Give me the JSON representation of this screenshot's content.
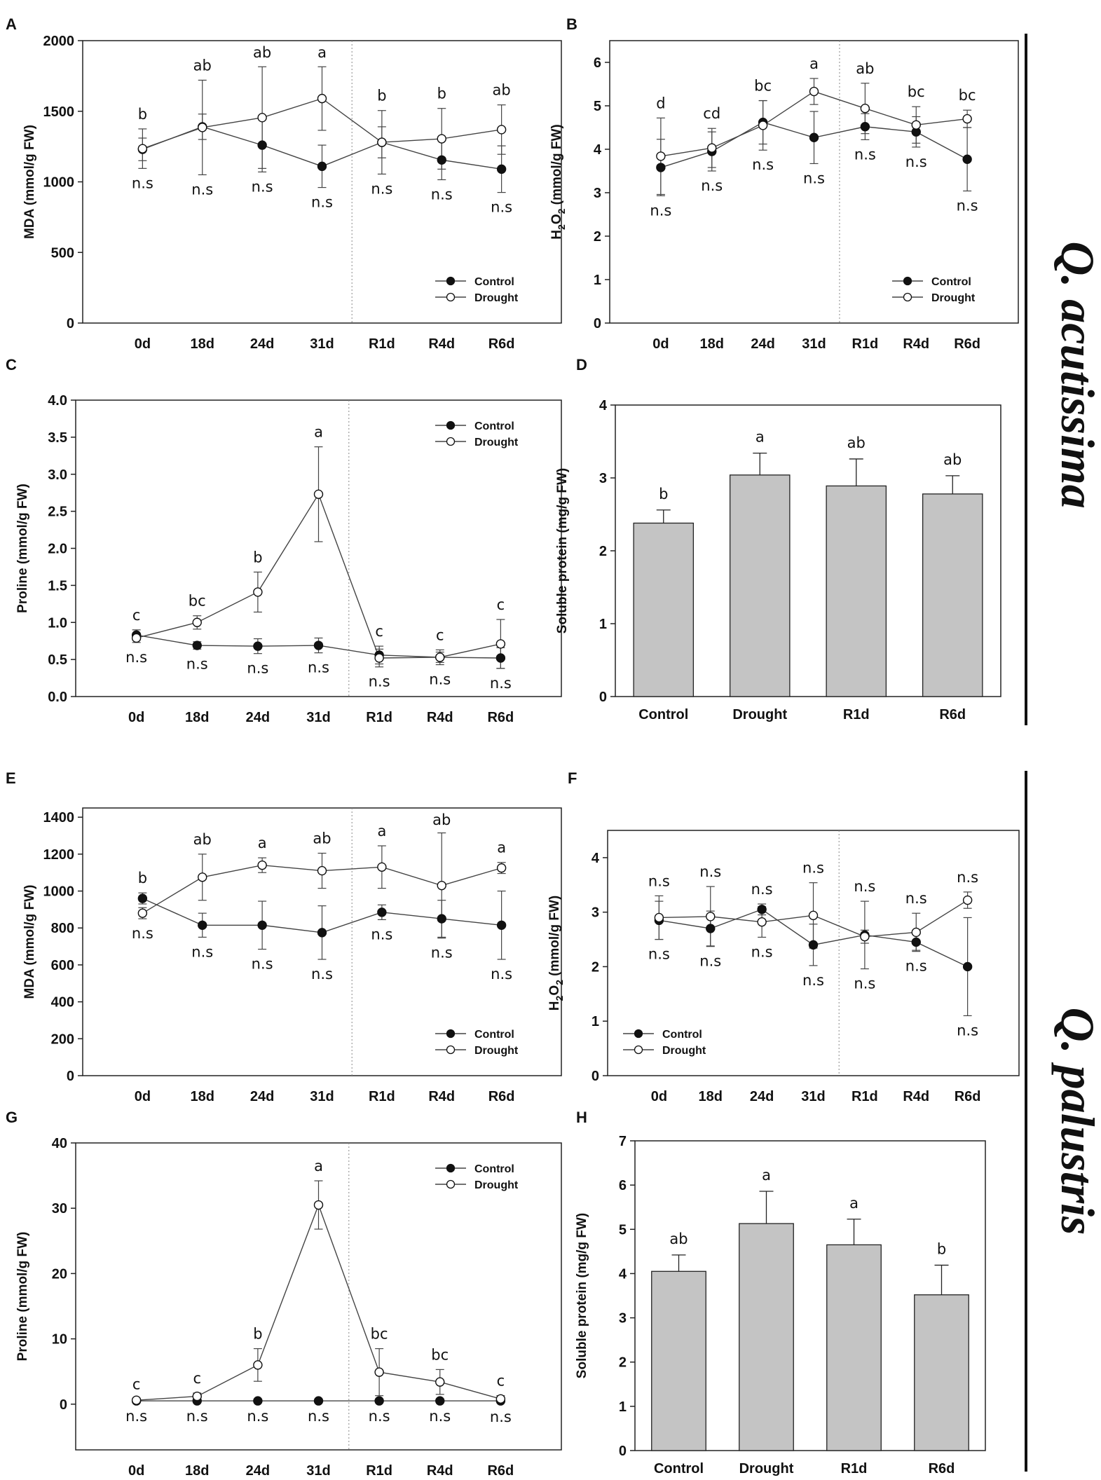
{
  "figure": {
    "species": [
      "Q. acutissima",
      "Q. palustris"
    ]
  },
  "chart_data": [
    {
      "panel": "A",
      "type": "line",
      "ylabel": "MDA (mmol/g FW)",
      "ylim": [
        0,
        2000
      ],
      "yticks": [
        0,
        500,
        1000,
        1500,
        2000
      ],
      "ytick_labels": [
        "0",
        "500",
        "1000",
        "1500",
        "2000"
      ],
      "categories": [
        "0d",
        "18d",
        "24d",
        "31d",
        "R1d",
        "R4d",
        "R6d"
      ],
      "series": [
        {
          "name": "Control",
          "values": [
            1230,
            1390,
            1260,
            1110,
            1280,
            1155,
            1090
          ],
          "errors": [
            80,
            90,
            190,
            150,
            110,
            140,
            165
          ]
        },
        {
          "name": "Drought",
          "values": [
            1235,
            1385,
            1455,
            1590,
            1280,
            1305,
            1370
          ],
          "errors": [
            140,
            335,
            360,
            225,
            225,
            215,
            175
          ]
        }
      ],
      "upper_labels": [
        "b",
        "ab",
        "ab",
        "a",
        "b",
        "b",
        "ab"
      ],
      "lower_labels": [
        "n.s",
        "n.s",
        "n.s",
        "n.s",
        "n.s",
        "n.s",
        "n.s"
      ],
      "legend": [
        "Control",
        "Drought"
      ],
      "legend_position": "bottom-right",
      "divider_after": "31d"
    },
    {
      "panel": "B",
      "type": "line",
      "ylabel": "H2O2 (mmol/g FW)",
      "ylabel_main": "H",
      "ylabel_sub": "2",
      "ylabel_mid": "O",
      "ylabel_sub2": "2",
      "ylabel_rest": " (mmol/g FW)",
      "ylim": [
        0,
        6.5
      ],
      "yticks": [
        0,
        1,
        2,
        3,
        4,
        5,
        6
      ],
      "ytick_labels": [
        "0",
        "1",
        "2",
        "3",
        "4",
        "5",
        "6"
      ],
      "categories": [
        "0d",
        "18d",
        "24d",
        "31d",
        "R1d",
        "R4d",
        "R6d"
      ],
      "series": [
        {
          "name": "Control",
          "values": [
            3.58,
            3.95,
            4.62,
            4.27,
            4.52,
            4.4,
            3.77
          ],
          "errors": [
            0.65,
            0.45,
            0.5,
            0.6,
            0.3,
            0.35,
            0.73
          ]
        },
        {
          "name": "Drought",
          "values": [
            3.84,
            4.03,
            4.55,
            5.33,
            4.94,
            4.56,
            4.7
          ],
          "errors": [
            0.88,
            0.45,
            0.57,
            0.3,
            0.58,
            0.42,
            0.2
          ]
        }
      ],
      "upper_labels": [
        "d",
        "cd",
        "bc",
        "a",
        "ab",
        "bc",
        "bc"
      ],
      "lower_labels": [
        "n.s",
        "n.s",
        "n.s",
        "n.s",
        "n.s",
        "n.s",
        "n.s"
      ],
      "legend": [
        "Control",
        "Drought"
      ],
      "legend_position": "bottom-right",
      "divider_after": "31d"
    },
    {
      "panel": "C",
      "type": "line",
      "ylabel": "Proline (mmol/g FW)",
      "ylim": [
        0,
        4.0
      ],
      "yticks": [
        0,
        0.5,
        1.0,
        1.5,
        2.0,
        2.5,
        3.0,
        3.5,
        4.0
      ],
      "ytick_labels": [
        "0.0",
        "0.5",
        "1.0",
        "1.5",
        "2.0",
        "2.5",
        "3.0",
        "3.5",
        "4.0"
      ],
      "categories": [
        "0d",
        "18d",
        "24d",
        "31d",
        "R1d",
        "R4d",
        "R6d"
      ],
      "series": [
        {
          "name": "Control",
          "values": [
            0.83,
            0.69,
            0.68,
            0.69,
            0.56,
            0.53,
            0.52
          ],
          "errors": [
            0.07,
            0.05,
            0.1,
            0.1,
            0.12,
            0.07,
            0.14
          ]
        },
        {
          "name": "Drought",
          "values": [
            0.79,
            1.0,
            1.41,
            2.73,
            0.52,
            0.53,
            0.71
          ],
          "errors": [
            0.06,
            0.09,
            0.27,
            0.64,
            0.12,
            0.1,
            0.33
          ]
        }
      ],
      "upper_labels": [
        "c",
        "bc",
        "b",
        "a",
        "c",
        "c",
        "c"
      ],
      "lower_labels": [
        "n.s",
        "n.s",
        "n.s",
        "n.s",
        "n.s",
        "n.s",
        "n.s"
      ],
      "legend": [
        "Control",
        "Drought"
      ],
      "legend_position": "top-right",
      "divider_after": "31d"
    },
    {
      "panel": "D",
      "type": "bar",
      "ylabel": "Soluble protein (mg/g FW)",
      "ylim": [
        0,
        4
      ],
      "yticks": [
        0,
        1,
        2,
        3,
        4
      ],
      "ytick_labels": [
        "0",
        "1",
        "2",
        "3",
        "4"
      ],
      "categories": [
        "Control",
        "Drought",
        "R1d",
        "R6d"
      ],
      "values": [
        2.38,
        3.04,
        2.89,
        2.78
      ],
      "errors": [
        0.18,
        0.3,
        0.37,
        0.25
      ],
      "labels": [
        "b",
        "a",
        "ab",
        "ab"
      ]
    },
    {
      "panel": "E",
      "type": "line",
      "ylabel": "MDA (mmol/g FW)",
      "ylim": [
        0,
        1450
      ],
      "yticks": [
        0,
        200,
        400,
        600,
        800,
        1000,
        1200,
        1400
      ],
      "ytick_labels": [
        "0",
        "200",
        "400",
        "600",
        "800",
        "1000",
        "1200",
        "1400"
      ],
      "categories": [
        "0d",
        "18d",
        "24d",
        "31d",
        "R1d",
        "R4d",
        "R6d"
      ],
      "series": [
        {
          "name": "Control",
          "values": [
            960,
            815,
            815,
            775,
            885,
            850,
            815
          ],
          "errors": [
            30,
            65,
            130,
            145,
            40,
            100,
            185
          ]
        },
        {
          "name": "Drought",
          "values": [
            880,
            1075,
            1140,
            1110,
            1130,
            1030,
            1125
          ],
          "errors": [
            30,
            125,
            40,
            95,
            115,
            285,
            30
          ]
        }
      ],
      "upper_labels": [
        "b",
        "ab",
        "a",
        "ab",
        "a",
        "ab",
        "a"
      ],
      "lower_labels": [
        "n.s",
        "n.s",
        "n.s",
        "n.s",
        "n.s",
        "n.s",
        "n.s"
      ],
      "legend": [
        "Control",
        "Drought"
      ],
      "legend_position": "bottom-right",
      "divider_after": "31d"
    },
    {
      "panel": "F",
      "type": "line",
      "ylabel": "H2O2 (mmol/g FW)",
      "ylabel_main": "H",
      "ylabel_sub": "2",
      "ylabel_mid": "O",
      "ylabel_sub2": "2",
      "ylabel_rest": " (mmol/g FW)",
      "ylim": [
        0,
        4.5
      ],
      "yticks": [
        0,
        1,
        2,
        3,
        4
      ],
      "ytick_labels": [
        "0",
        "1",
        "2",
        "3",
        "4"
      ],
      "categories": [
        "0d",
        "18d",
        "24d",
        "31d",
        "R1d",
        "R4d",
        "R6d"
      ],
      "series": [
        {
          "name": "Control",
          "values": [
            2.85,
            2.7,
            3.05,
            2.4,
            2.58,
            2.45,
            2.0
          ],
          "errors": [
            0.35,
            0.32,
            0.1,
            0.38,
            0.62,
            0.15,
            0.9
          ]
        },
        {
          "name": "Drought",
          "values": [
            2.9,
            2.92,
            2.82,
            2.94,
            2.55,
            2.63,
            3.22
          ],
          "errors": [
            0.4,
            0.55,
            0.28,
            0.6,
            0.12,
            0.35,
            0.15
          ]
        }
      ],
      "upper_labels": [
        "n.s",
        "n.s",
        "n.s",
        "n.s",
        "n.s",
        "n.s",
        "n.s"
      ],
      "lower_labels": [
        "n.s",
        "n.s",
        "n.s",
        "n.s",
        "n.s",
        "n.s",
        "n.s"
      ],
      "legend": [
        "Control",
        "Drought"
      ],
      "legend_position": "bottom-left",
      "divider_after": "31d"
    },
    {
      "panel": "G",
      "type": "line",
      "ylabel": "Proline (mmol/g FW)",
      "ylim": [
        -7,
        40
      ],
      "yticks": [
        0,
        10,
        20,
        30,
        40
      ],
      "ytick_labels": [
        "0",
        "10",
        "20",
        "30",
        "40"
      ],
      "categories": [
        "0d",
        "18d",
        "24d",
        "31d",
        "R1d",
        "R4d",
        "R6d"
      ],
      "series": [
        {
          "name": "Control",
          "values": [
            0.5,
            0.5,
            0.5,
            0.5,
            0.5,
            0.5,
            0.5
          ],
          "errors": [
            0.1,
            0.1,
            0.1,
            0.1,
            0.1,
            0.1,
            0.1
          ]
        },
        {
          "name": "Drought",
          "values": [
            0.6,
            1.2,
            6.0,
            30.5,
            4.9,
            3.4,
            0.8
          ],
          "errors": [
            0.2,
            0.5,
            2.5,
            3.7,
            3.6,
            1.9,
            0.5
          ]
        }
      ],
      "upper_labels": [
        "c",
        "c",
        "b",
        "a",
        "bc",
        "bc",
        "c"
      ],
      "lower_labels": [
        "n.s",
        "n.s",
        "n.s",
        "n.s",
        "n.s",
        "n.s",
        "n.s"
      ],
      "legend": [
        "Control",
        "Drought"
      ],
      "legend_position": "top-right",
      "divider_after": "31d"
    },
    {
      "panel": "H",
      "type": "bar",
      "ylabel": "Soluble protein (mg/g FW)",
      "ylim": [
        0,
        7
      ],
      "yticks": [
        0,
        1,
        2,
        3,
        4,
        5,
        6,
        7
      ],
      "ytick_labels": [
        "0",
        "1",
        "2",
        "3",
        "4",
        "5",
        "6",
        "7"
      ],
      "categories": [
        "Control",
        "Drought",
        "R1d",
        "R6d"
      ],
      "values": [
        4.05,
        5.13,
        4.65,
        3.52
      ],
      "errors": [
        0.37,
        0.73,
        0.58,
        0.67
      ],
      "labels": [
        "ab",
        "a",
        "a",
        "b"
      ]
    }
  ]
}
